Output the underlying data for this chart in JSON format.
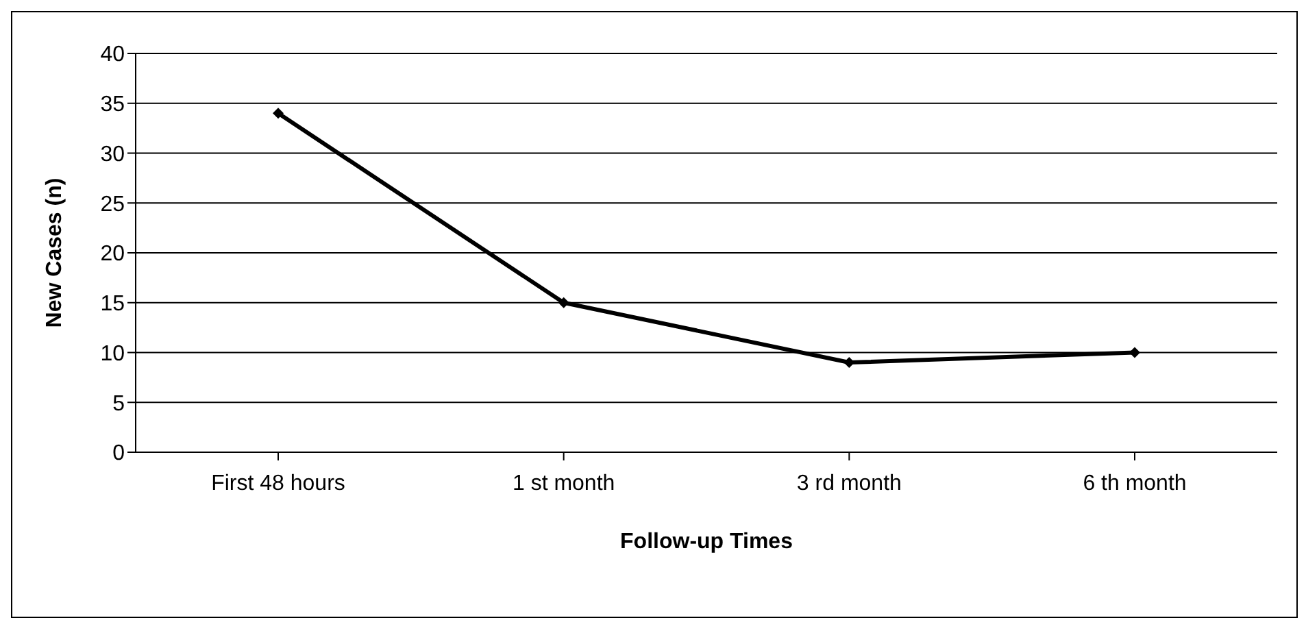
{
  "chart_data": {
    "type": "line",
    "xlabel": "Follow-up Times",
    "ylabel": "New Cases (n)",
    "categories": [
      "First 48 hours",
      "1 st month",
      "3 rd month",
      "6 th month"
    ],
    "series": [
      {
        "color": "#000000",
        "values": [
          34,
          15,
          9,
          10
        ]
      }
    ],
    "ylim": [
      0,
      40
    ],
    "yticks": [
      0,
      5,
      10,
      15,
      20,
      25,
      30,
      35,
      40
    ],
    "grid": "y",
    "marker": "diamond",
    "line_style": "solid"
  }
}
